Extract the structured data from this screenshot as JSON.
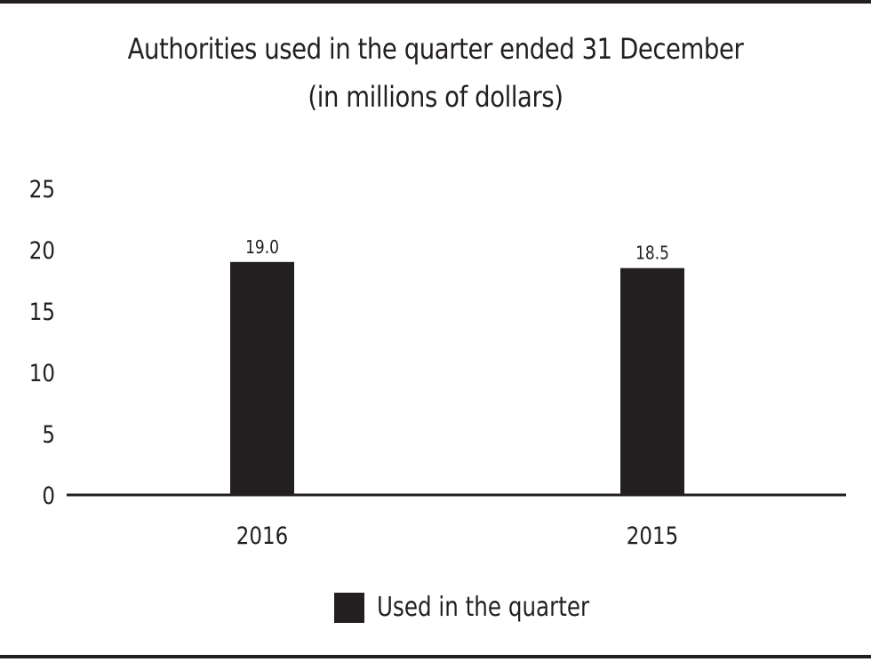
{
  "chart_data": {
    "type": "bar",
    "title_line1": "Authorities used in the quarter ended 31 December",
    "title_line2": "(in millions of dollars)",
    "categories": [
      "2016",
      "2015"
    ],
    "series": [
      {
        "name": "Used in the quarter",
        "values": [
          19.0,
          18.5
        ],
        "color": "#231f20"
      }
    ],
    "data_labels": [
      "19.0",
      "18.5"
    ],
    "ylim": [
      0,
      25
    ],
    "yticks": [
      0,
      5,
      10,
      15,
      20,
      25
    ],
    "grid": false,
    "legend_position": "bottom-center"
  }
}
